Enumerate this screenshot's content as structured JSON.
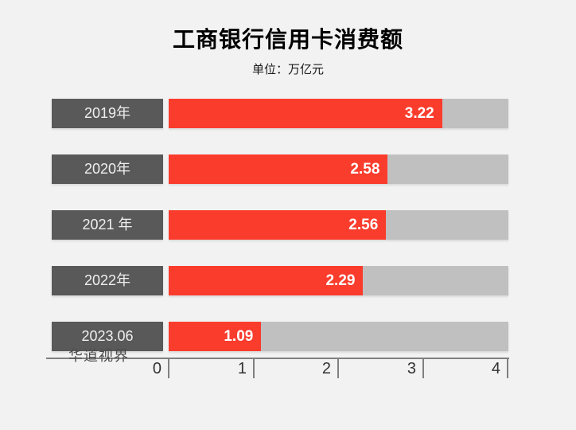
{
  "header": {
    "title": "工商银行信用卡消费额",
    "subtitle": "单位：万亿元"
  },
  "chart_data": {
    "type": "bar",
    "orientation": "horizontal",
    "title": "工商银行信用卡消费额",
    "unit_label": "单位：万亿元",
    "categories": [
      "2019年",
      "2020年",
      "2021 年",
      "2022年",
      "2023.06"
    ],
    "values": [
      3.22,
      2.58,
      2.56,
      2.29,
      1.09
    ],
    "value_labels": [
      "3.22",
      "2.58",
      "2.56",
      "2.29",
      "1.09"
    ],
    "xlabel": "",
    "ylabel": "",
    "xlim": [
      0,
      4
    ],
    "x_tick_labels": [
      "0",
      "1",
      "2",
      "3",
      "4"
    ],
    "grid": false,
    "legend": false,
    "colors": {
      "bar_fill": "#fa3c2d",
      "bar_track": "#c0c0c0",
      "category_box": "#595959",
      "category_text": "#efefef",
      "value_text": "#ffffff",
      "axis": "#808080",
      "tick_text": "#333333",
      "background": "#f2f2f2"
    }
  },
  "watermark": "华道视界"
}
